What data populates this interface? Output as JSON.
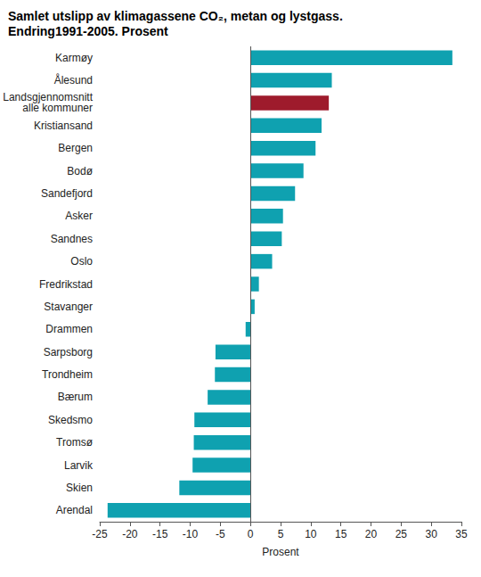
{
  "chart_data": {
    "type": "bar",
    "orientation": "horizontal",
    "title": "Samlet utslipp av klimagassene CO₂, metan og lystgass.\nEndring1991-2005. Prosent",
    "x_label": "Prosent",
    "categories": [
      "Karmøy",
      "Ålesund",
      "Landsgjennomsnitt\nalle kommuner",
      "Kristiansand",
      "Bergen",
      "Bodø",
      "Sandefjord",
      "Asker",
      "Sandnes",
      "Oslo",
      "Fredrikstad",
      "Stavanger",
      "Drammen",
      "Sarpsborg",
      "Trondheim",
      "Bærum",
      "Skedsmo",
      "Tromsø",
      "Larvik",
      "Skien",
      "Arendal"
    ],
    "values": [
      33.5,
      13.5,
      13,
      11.8,
      10.8,
      8.8,
      7.4,
      5.4,
      5.2,
      3.6,
      1.4,
      0.7,
      -0.8,
      -5.8,
      -5.9,
      -7.1,
      -9.3,
      -9.4,
      -9.6,
      -11.8,
      -23.7
    ],
    "colors": [
      "#0fa1b0",
      "#0fa1b0",
      "#9e1b2c",
      "#0fa1b0",
      "#0fa1b0",
      "#0fa1b0",
      "#0fa1b0",
      "#0fa1b0",
      "#0fa1b0",
      "#0fa1b0",
      "#0fa1b0",
      "#0fa1b0",
      "#0fa1b0",
      "#0fa1b0",
      "#0fa1b0",
      "#0fa1b0",
      "#0fa1b0",
      "#0fa1b0",
      "#0fa1b0",
      "#0fa1b0",
      "#0fa1b0"
    ],
    "xlim": [
      -25,
      35
    ],
    "xticks": [
      -25,
      -20,
      -15,
      -10,
      -5,
      0,
      5,
      10,
      15,
      20,
      25,
      30,
      35
    ],
    "grid": false
  }
}
